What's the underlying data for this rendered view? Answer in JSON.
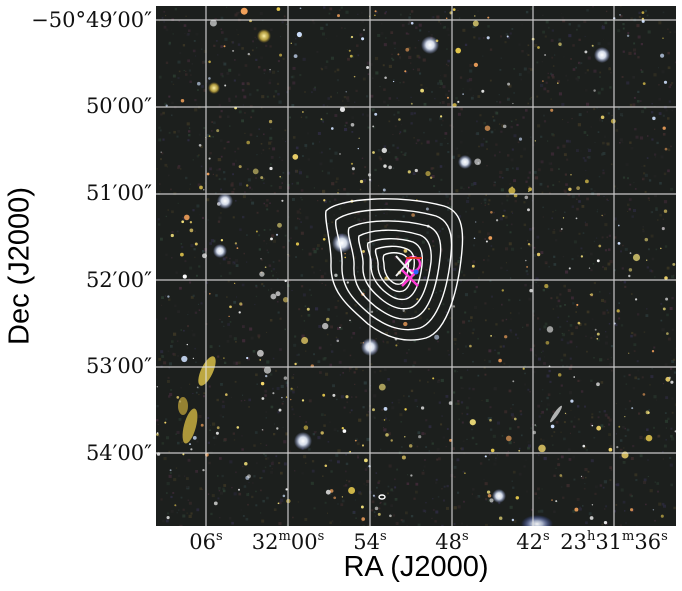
{
  "figure": {
    "axes": {
      "x_label": "RA (J2000)",
      "y_label": "Dec (J2000)"
    },
    "y_ticks": [
      {
        "main": "−50°49′00″"
      },
      {
        "main": "50′00″"
      },
      {
        "main": "51′00″"
      },
      {
        "main": "52′00″"
      },
      {
        "main": "53′00″"
      },
      {
        "main": "54′00″"
      }
    ],
    "x_ticks": [
      {
        "parts": [
          {
            "t": "06"
          },
          {
            "sup": "s"
          }
        ]
      },
      {
        "parts": [
          {
            "t": "32"
          },
          {
            "sup": "m"
          },
          {
            "t": "00"
          },
          {
            "sup": "s"
          }
        ]
      },
      {
        "parts": [
          {
            "t": "54"
          },
          {
            "sup": "s"
          }
        ]
      },
      {
        "parts": [
          {
            "t": "48"
          },
          {
            "sup": "s"
          }
        ]
      },
      {
        "parts": [
          {
            "t": "42"
          },
          {
            "sup": "s"
          }
        ]
      },
      {
        "parts": [
          {
            "t": "23"
          },
          {
            "sup": "h"
          },
          {
            "t": "31"
          },
          {
            "sup": "m"
          },
          {
            "t": "36"
          },
          {
            "sup": "s"
          }
        ]
      }
    ],
    "image": {
      "description_colors": {
        "sky_background": "#1c1f1d",
        "grid": "#e6e6e6",
        "contour": "#ffffff",
        "bcg_marker": "#ff3ad4",
        "center_marker": "#ff3ad4",
        "cross_marker": "#f5f5f5"
      }
    }
  }
}
